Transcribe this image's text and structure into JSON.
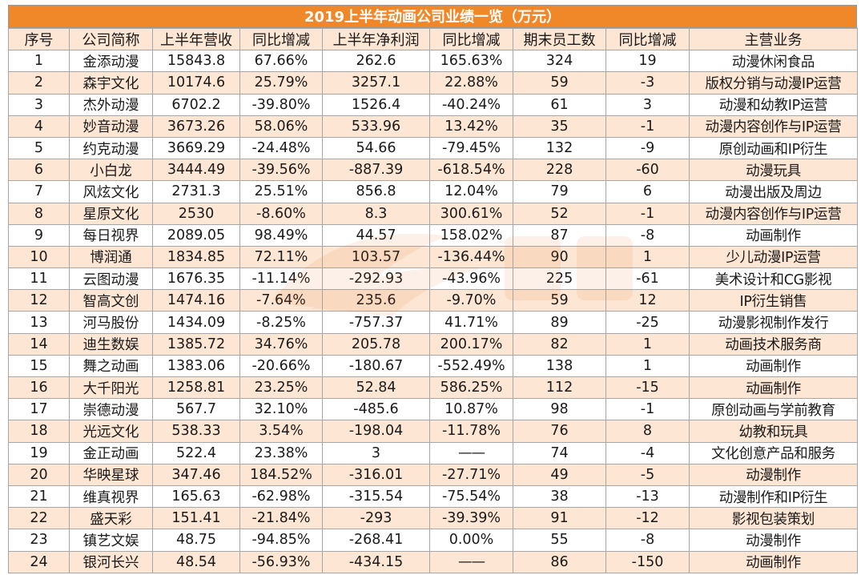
{
  "title": "2019上半年动画公司业绩一览（万元）",
  "headers": [
    "序号",
    "公司简称",
    "上半年营收",
    "同比增减",
    "上半年净利润",
    "同比增减",
    "期末员工数",
    "同比增减",
    "主营业务"
  ],
  "rows": [
    [
      "1",
      "金添动漫",
      "15843.8",
      "67.66%",
      "262.6",
      "165.63%",
      "324",
      "19",
      "动漫休闲食品"
    ],
    [
      "2",
      "森宇文化",
      "10174.6",
      "25.79%",
      "3257.1",
      "22.88%",
      "59",
      "-3",
      "版权分销与动漫IP运营"
    ],
    [
      "3",
      "杰外动漫",
      "6702.2",
      "-39.80%",
      "1526.4",
      "-40.24%",
      "61",
      "3",
      "动漫和幼教IP运营"
    ],
    [
      "4",
      "妙音动漫",
      "3673.26",
      "58.06%",
      "533.96",
      "13.42%",
      "35",
      "-1",
      "动漫内容创作与IP运营"
    ],
    [
      "5",
      "约克动漫",
      "3669.29",
      "-24.48%",
      "54.66",
      "-79.45%",
      "132",
      "-9",
      "原创动画和IP衍生"
    ],
    [
      "6",
      "小白龙",
      "3444.49",
      "-39.56%",
      "-887.39",
      "-618.54%",
      "228",
      "-60",
      "动漫玩具"
    ],
    [
      "7",
      "风炫文化",
      "2731.3",
      "25.51%",
      "856.8",
      "12.04%",
      "79",
      "6",
      "动漫出版及周边"
    ],
    [
      "8",
      "星原文化",
      "2530",
      "-8.60%",
      "8.3",
      "300.61%",
      "52",
      "-1",
      "动漫内容创作与IP运营"
    ],
    [
      "9",
      "每日视界",
      "2089.05",
      "98.49%",
      "44.57",
      "158.02%",
      "87",
      "-8",
      "动画制作"
    ],
    [
      "10",
      "博润通",
      "1834.85",
      "72.11%",
      "103.57",
      "-136.44%",
      "90",
      "1",
      "少儿动漫IP运营"
    ],
    [
      "11",
      "云图动漫",
      "1676.35",
      "-11.14%",
      "-292.93",
      "-43.96%",
      "225",
      "-61",
      "美术设计和CG影视"
    ],
    [
      "12",
      "智高文创",
      "1474.16",
      "-7.64%",
      "235.6",
      "-9.70%",
      "59",
      "12",
      "IP衍生销售"
    ],
    [
      "13",
      "河马股份",
      "1434.09",
      "-8.25%",
      "-757.37",
      "41.71%",
      "89",
      "-25",
      "动漫影视制作发行"
    ],
    [
      "14",
      "迪生数娱",
      "1385.72",
      "34.76%",
      "205.78",
      "200.17%",
      "82",
      "1",
      "动画技术服务商"
    ],
    [
      "15",
      "舞之动画",
      "1383.06",
      "-20.66%",
      "-180.67",
      "-552.49%",
      "138",
      "1",
      "动画制作"
    ],
    [
      "16",
      "大千阳光",
      "1258.81",
      "23.25%",
      "52.84",
      "586.25%",
      "112",
      "-15",
      "动画制作"
    ],
    [
      "17",
      "崇德动漫",
      "567.7",
      "32.10%",
      "-485.6",
      "10.87%",
      "98",
      "-1",
      "原创动画与学前教育"
    ],
    [
      "18",
      "光远文化",
      "538.33",
      "3.54%",
      "-198.04",
      "-11.78%",
      "76",
      "8",
      "幼教和玩具"
    ],
    [
      "19",
      "金正动画",
      "522.4",
      "23.38%",
      "3",
      "——",
      "74",
      "-4",
      "文化创意产品和服务"
    ],
    [
      "20",
      "华映星球",
      "347.46",
      "184.52%",
      "-316.01",
      "-27.71%",
      "49",
      "-5",
      "动漫制作"
    ],
    [
      "21",
      "维真视界",
      "165.63",
      "-62.98%",
      "-315.54",
      "-75.54%",
      "38",
      "-13",
      "动漫制作和IP衍生"
    ],
    [
      "22",
      "盛天彩",
      "151.41",
      "-21.84%",
      "-293",
      "-39.39%",
      "91",
      "-12",
      "影视包装策划"
    ],
    [
      "23",
      "镇艺文娱",
      "48.75",
      "-94.85%",
      "-268.41",
      "0.00%",
      "55",
      "-8",
      "动漫制作"
    ],
    [
      "24",
      "银河长兴",
      "48.54",
      "-56.93%",
      "-434.15",
      "——",
      "86",
      "-150",
      "动画制作"
    ]
  ],
  "colors": {
    "title_bg": "#f0882a",
    "stripe": "#fde6d3",
    "border": "#a6a6a6"
  }
}
